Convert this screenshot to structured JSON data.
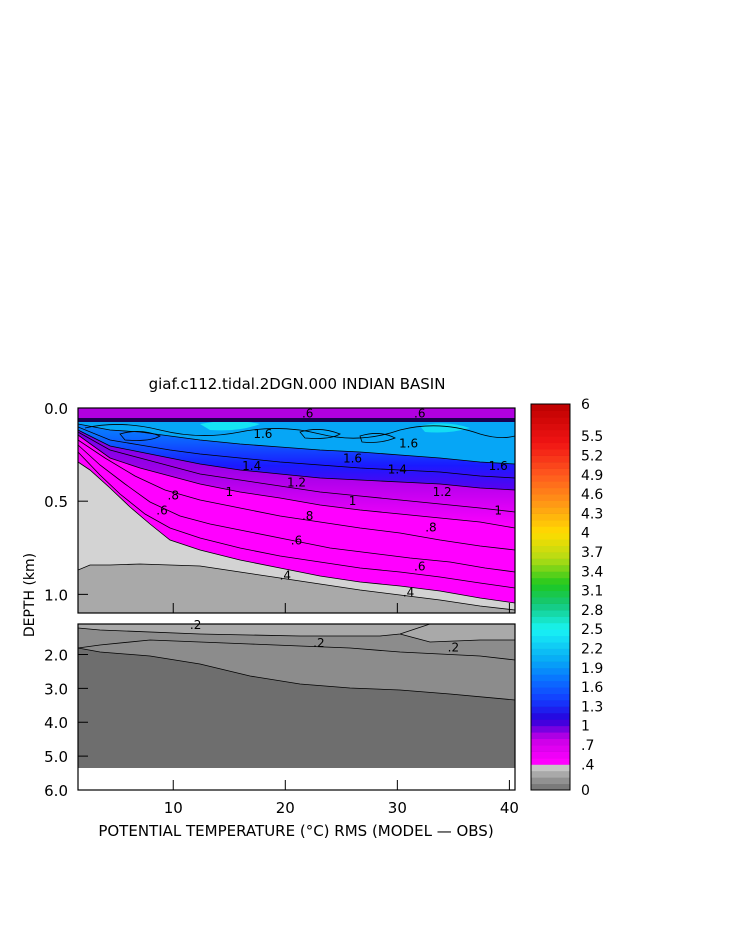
{
  "chart_data": {
    "type": "heatmap",
    "title": "giaf.c112.tidal.2DGN.000 INDIAN BASIN",
    "xlabel": "POTENTIAL TEMPERATURE (°C) RMS (MODEL — OBS)",
    "ylabel": "DEPTH (km)",
    "xlim": [
      1.5,
      40.5
    ],
    "upper_panel": {
      "ylim": [
        0.0,
        1.1
      ]
    },
    "lower_panel": {
      "ylim": [
        1.1,
        6.0
      ]
    },
    "x_ticks": [
      10,
      20,
      30,
      40
    ],
    "x_tick_labels": [
      "10",
      "20",
      "30",
      "40"
    ],
    "y_ticks_upper": [
      0.0,
      0.5,
      1.0
    ],
    "y_tick_labels_upper": [
      "0.0",
      "0.5",
      "1.0"
    ],
    "y_ticks_lower": [
      2.0,
      3.0,
      4.0,
      5.0,
      6.0
    ],
    "y_tick_labels_lower": [
      "2.0",
      "3.0",
      "4.0",
      "5.0",
      "6.0"
    ],
    "colorbar": {
      "min": 0,
      "max": 6,
      "labels": [
        "6",
        "5.5",
        "5.2",
        "4.9",
        "4.6",
        "4.3",
        "4",
        "3.7",
        "3.4",
        "3.1",
        "2.8",
        "2.5",
        "2.2",
        "1.9",
        "1.6",
        "1.3",
        "1",
        ".7",
        ".4",
        "0"
      ],
      "label_values": [
        6,
        5.5,
        5.2,
        4.9,
        4.6,
        4.3,
        4,
        3.7,
        3.4,
        3.1,
        2.8,
        2.5,
        2.2,
        1.9,
        1.6,
        1.3,
        1,
        0.7,
        0.4,
        0
      ]
    },
    "contour_labels": [
      {
        "text": ".6",
        "x": 22,
        "y": 0.03
      },
      {
        "text": ".6",
        "x": 32,
        "y": 0.03
      },
      {
        "text": "1.6",
        "x": 18,
        "y": 0.14
      },
      {
        "text": "1.6",
        "x": 26,
        "y": 0.27
      },
      {
        "text": "1.6",
        "x": 31,
        "y": 0.19
      },
      {
        "text": "1.6",
        "x": 39,
        "y": 0.31
      },
      {
        "text": "1.4",
        "x": 17,
        "y": 0.31
      },
      {
        "text": "1.4",
        "x": 30,
        "y": 0.33
      },
      {
        "text": "1.2",
        "x": 21,
        "y": 0.4
      },
      {
        "text": "1.2",
        "x": 34,
        "y": 0.45
      },
      {
        "text": "1",
        "x": 39,
        "y": 0.55
      },
      {
        "text": "1",
        "x": 26,
        "y": 0.5
      },
      {
        "text": "1",
        "x": 15,
        "y": 0.45
      },
      {
        "text": ".8",
        "x": 10,
        "y": 0.47
      },
      {
        "text": ".8",
        "x": 22,
        "y": 0.58
      },
      {
        "text": ".8",
        "x": 33,
        "y": 0.64
      },
      {
        "text": ".6",
        "x": 9,
        "y": 0.55
      },
      {
        "text": ".6",
        "x": 21,
        "y": 0.71
      },
      {
        "text": ".6",
        "x": 32,
        "y": 0.85
      },
      {
        "text": ".4",
        "x": 20,
        "y": 0.9
      },
      {
        "text": ".4",
        "x": 31,
        "y": 0.99
      },
      {
        "text": ".2",
        "x": 12,
        "y": 1.13
      },
      {
        "text": ".2",
        "x": 23,
        "y": 1.66
      },
      {
        "text": ".2",
        "x": 35,
        "y": 1.8
      }
    ],
    "grid": false,
    "legend": "colorbar-right",
    "colors": {
      "magenta": "#ff00ff",
      "purple": "#9b00e6",
      "deep_blue": "#1a1aff",
      "blue": "#0a6cff",
      "light_blue": "#06a6f6",
      "cyan": "#19f4f4",
      "grey_light": "#d3d3d3",
      "grey_mid": "#a9a9a9",
      "grey_dark": "#8c8c8c",
      "grey_darkest": "#6e6e6e"
    }
  }
}
